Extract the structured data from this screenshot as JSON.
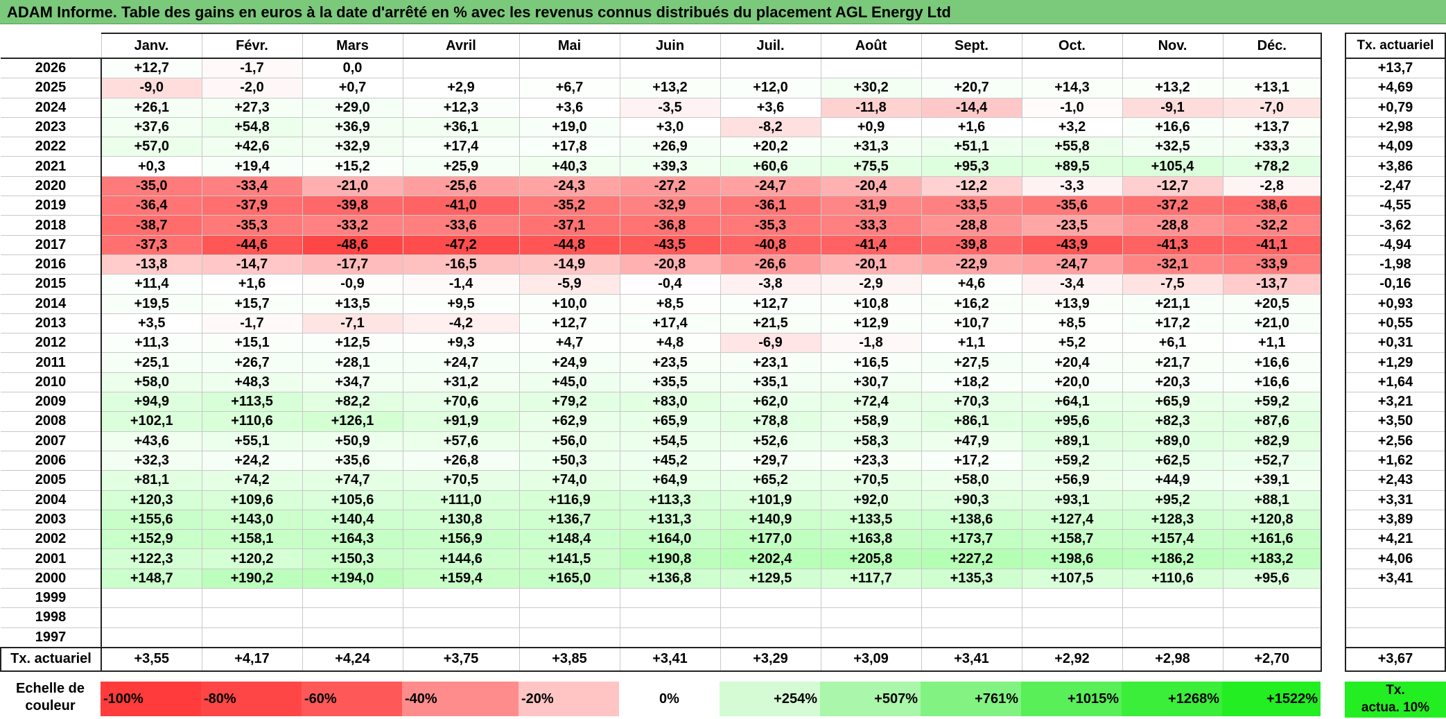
{
  "title": "ADAM Informe. Table des gains en euros à la date d'arrêté en % avec les revenus connus distribués du placement AGL Energy Ltd",
  "months": [
    "Janv.",
    "Févr.",
    "Mars",
    "Avril",
    "Mai",
    "Juin",
    "Juil.",
    "Août",
    "Sept.",
    "Oct.",
    "Nov.",
    "Déc."
  ],
  "side_header": "Tx. actuariel",
  "rows": [
    {
      "year": "2026",
      "values": [
        "+12,7",
        "-1,7",
        "0,0",
        "",
        "",
        "",
        "",
        "",
        "",
        "",
        "",
        ""
      ],
      "rate": "+13,7"
    },
    {
      "year": "2025",
      "values": [
        "-9,0",
        "-2,0",
        "+0,7",
        "+2,9",
        "+6,7",
        "+13,2",
        "+12,0",
        "+30,2",
        "+20,7",
        "+14,3",
        "+13,2",
        "+13,1"
      ],
      "rate": "+4,69"
    },
    {
      "year": "2024",
      "values": [
        "+26,1",
        "+27,3",
        "+29,0",
        "+12,3",
        "+3,6",
        "-3,5",
        "+3,6",
        "-11,8",
        "-14,4",
        "-1,0",
        "-9,1",
        "-7,0"
      ],
      "rate": "+0,79"
    },
    {
      "year": "2023",
      "values": [
        "+37,6",
        "+54,8",
        "+36,9",
        "+36,1",
        "+19,0",
        "+3,0",
        "-8,2",
        "+0,9",
        "+1,6",
        "+3,2",
        "+16,6",
        "+13,7"
      ],
      "rate": "+2,98"
    },
    {
      "year": "2022",
      "values": [
        "+57,0",
        "+42,6",
        "+32,9",
        "+17,4",
        "+17,8",
        "+26,9",
        "+20,2",
        "+31,3",
        "+51,1",
        "+55,8",
        "+32,5",
        "+33,3"
      ],
      "rate": "+4,09"
    },
    {
      "year": "2021",
      "values": [
        "+0,3",
        "+19,4",
        "+15,2",
        "+25,9",
        "+40,3",
        "+39,3",
        "+60,6",
        "+75,5",
        "+95,3",
        "+89,5",
        "+105,4",
        "+78,2"
      ],
      "rate": "+3,86"
    },
    {
      "year": "2020",
      "values": [
        "-35,0",
        "-33,4",
        "-21,0",
        "-25,6",
        "-24,3",
        "-27,2",
        "-24,7",
        "-20,4",
        "-12,2",
        "-3,3",
        "-12,7",
        "-2,8"
      ],
      "rate": "-2,47"
    },
    {
      "year": "2019",
      "values": [
        "-36,4",
        "-37,9",
        "-39,8",
        "-41,0",
        "-35,2",
        "-32,9",
        "-36,1",
        "-31,9",
        "-33,5",
        "-35,6",
        "-37,2",
        "-38,6"
      ],
      "rate": "-4,55"
    },
    {
      "year": "2018",
      "values": [
        "-38,7",
        "-35,3",
        "-33,2",
        "-33,6",
        "-37,1",
        "-36,8",
        "-35,3",
        "-33,3",
        "-28,8",
        "-23,5",
        "-28,8",
        "-32,2"
      ],
      "rate": "-3,62"
    },
    {
      "year": "2017",
      "values": [
        "-37,3",
        "-44,6",
        "-48,6",
        "-47,2",
        "-44,8",
        "-43,5",
        "-40,8",
        "-41,4",
        "-39,8",
        "-43,9",
        "-41,3",
        "-41,1"
      ],
      "rate": "-4,94"
    },
    {
      "year": "2016",
      "values": [
        "-13,8",
        "-14,7",
        "-17,7",
        "-16,5",
        "-14,9",
        "-20,8",
        "-26,6",
        "-20,1",
        "-22,9",
        "-24,7",
        "-32,1",
        "-33,9"
      ],
      "rate": "-1,98"
    },
    {
      "year": "2015",
      "values": [
        "+11,4",
        "+1,6",
        "-0,9",
        "-1,4",
        "-5,9",
        "-0,4",
        "-3,8",
        "-2,9",
        "+4,6",
        "-3,4",
        "-7,5",
        "-13,7"
      ],
      "rate": "-0,16"
    },
    {
      "year": "2014",
      "values": [
        "+19,5",
        "+15,7",
        "+13,5",
        "+9,5",
        "+10,0",
        "+8,5",
        "+12,7",
        "+10,8",
        "+16,2",
        "+13,9",
        "+21,1",
        "+20,5"
      ],
      "rate": "+0,93"
    },
    {
      "year": "2013",
      "values": [
        "+3,5",
        "-1,7",
        "-7,1",
        "-4,2",
        "+12,7",
        "+17,4",
        "+21,5",
        "+12,9",
        "+10,7",
        "+8,5",
        "+17,2",
        "+21,0"
      ],
      "rate": "+0,55"
    },
    {
      "year": "2012",
      "values": [
        "+11,3",
        "+15,1",
        "+12,5",
        "+9,3",
        "+4,7",
        "+4,8",
        "-6,9",
        "-1,8",
        "+1,1",
        "+5,2",
        "+6,1",
        "+1,1"
      ],
      "rate": "+0,31"
    },
    {
      "year": "2011",
      "values": [
        "+25,1",
        "+26,7",
        "+28,1",
        "+24,7",
        "+24,9",
        "+23,5",
        "+23,1",
        "+16,5",
        "+27,5",
        "+20,4",
        "+21,7",
        "+16,6"
      ],
      "rate": "+1,29"
    },
    {
      "year": "2010",
      "values": [
        "+58,0",
        "+48,3",
        "+34,7",
        "+31,2",
        "+45,0",
        "+35,5",
        "+35,1",
        "+30,7",
        "+18,2",
        "+20,0",
        "+20,3",
        "+16,6"
      ],
      "rate": "+1,64"
    },
    {
      "year": "2009",
      "values": [
        "+94,9",
        "+113,5",
        "+82,2",
        "+70,6",
        "+79,2",
        "+83,0",
        "+62,0",
        "+72,4",
        "+70,3",
        "+64,1",
        "+65,9",
        "+59,2"
      ],
      "rate": "+3,21"
    },
    {
      "year": "2008",
      "values": [
        "+102,1",
        "+110,6",
        "+126,1",
        "+91,9",
        "+62,9",
        "+65,9",
        "+78,8",
        "+58,9",
        "+86,1",
        "+95,6",
        "+82,3",
        "+87,6"
      ],
      "rate": "+3,50"
    },
    {
      "year": "2007",
      "values": [
        "+43,6",
        "+55,1",
        "+50,9",
        "+57,6",
        "+56,0",
        "+54,5",
        "+52,6",
        "+58,3",
        "+47,9",
        "+89,1",
        "+89,0",
        "+82,9"
      ],
      "rate": "+2,56"
    },
    {
      "year": "2006",
      "values": [
        "+32,3",
        "+24,2",
        "+35,6",
        "+26,8",
        "+50,3",
        "+45,2",
        "+29,7",
        "+23,3",
        "+17,2",
        "+59,2",
        "+62,5",
        "+52,7"
      ],
      "rate": "+1,62"
    },
    {
      "year": "2005",
      "values": [
        "+81,1",
        "+74,2",
        "+74,7",
        "+70,5",
        "+74,0",
        "+64,9",
        "+65,2",
        "+70,5",
        "+58,0",
        "+56,9",
        "+44,9",
        "+39,1"
      ],
      "rate": "+2,43"
    },
    {
      "year": "2004",
      "values": [
        "+120,3",
        "+109,6",
        "+105,6",
        "+111,0",
        "+116,9",
        "+113,3",
        "+101,9",
        "+92,0",
        "+90,3",
        "+93,1",
        "+95,2",
        "+88,1"
      ],
      "rate": "+3,31"
    },
    {
      "year": "2003",
      "values": [
        "+155,6",
        "+143,0",
        "+140,4",
        "+130,8",
        "+136,7",
        "+131,3",
        "+140,9",
        "+133,5",
        "+138,6",
        "+127,4",
        "+128,3",
        "+120,8"
      ],
      "rate": "+3,89"
    },
    {
      "year": "2002",
      "values": [
        "+152,9",
        "+158,1",
        "+164,3",
        "+156,9",
        "+148,4",
        "+164,0",
        "+177,0",
        "+163,8",
        "+173,7",
        "+158,7",
        "+157,4",
        "+161,6"
      ],
      "rate": "+4,21"
    },
    {
      "year": "2001",
      "values": [
        "+122,3",
        "+120,2",
        "+150,3",
        "+144,6",
        "+141,5",
        "+190,8",
        "+202,4",
        "+205,8",
        "+227,2",
        "+198,6",
        "+186,2",
        "+183,2"
      ],
      "rate": "+4,06"
    },
    {
      "year": "2000",
      "values": [
        "+148,7",
        "+190,2",
        "+194,0",
        "+159,4",
        "+165,0",
        "+136,8",
        "+129,5",
        "+117,7",
        "+135,3",
        "+107,5",
        "+110,6",
        "+95,6"
      ],
      "rate": "+3,41"
    },
    {
      "year": "1999",
      "values": [
        "",
        "",
        "",
        "",
        "",
        "",
        "",
        "",
        "",
        "",
        "",
        ""
      ],
      "rate": ""
    },
    {
      "year": "1998",
      "values": [
        "",
        "",
        "",
        "",
        "",
        "",
        "",
        "",
        "",
        "",
        "",
        ""
      ],
      "rate": ""
    },
    {
      "year": "1997",
      "values": [
        "",
        "",
        "",
        "",
        "",
        "",
        "",
        "",
        "",
        "",
        "",
        ""
      ],
      "rate": ""
    }
  ],
  "footer": {
    "label": "Tx. actuariel",
    "values": [
      "+3,55",
      "+4,17",
      "+4,24",
      "+3,75",
      "+3,85",
      "+3,41",
      "+3,29",
      "+3,09",
      "+3,41",
      "+2,92",
      "+2,98",
      "+2,70"
    ],
    "total": "+3,67"
  },
  "legend": {
    "label_line1": "Echelle de",
    "label_line2": "couleur",
    "cells": [
      {
        "text": "-100%",
        "color": "#ff3b3b",
        "align": "left"
      },
      {
        "text": "-80%",
        "color": "#ff4646",
        "align": "left"
      },
      {
        "text": "-60%",
        "color": "#ff5858",
        "align": "left"
      },
      {
        "text": "-40%",
        "color": "#ff8c8c",
        "align": "left"
      },
      {
        "text": "-20%",
        "color": "#ffc4c4",
        "align": "left"
      },
      {
        "text": "0%",
        "color": "#ffffff",
        "align": "center"
      },
      {
        "text": "+254%",
        "color": "#d4fbd4",
        "align": "right"
      },
      {
        "text": "+507%",
        "color": "#aaf6aa",
        "align": "right"
      },
      {
        "text": "+761%",
        "color": "#82f382",
        "align": "right"
      },
      {
        "text": "+1015%",
        "color": "#58ef58",
        "align": "right"
      },
      {
        "text": "+1268%",
        "color": "#3aee3a",
        "align": "right"
      },
      {
        "text": "+1522%",
        "color": "#22ee22",
        "align": "right"
      }
    ],
    "actua_line1": "Tx.",
    "actua_line2": "actua. 10%",
    "actua_color": "#22ee22"
  }
}
